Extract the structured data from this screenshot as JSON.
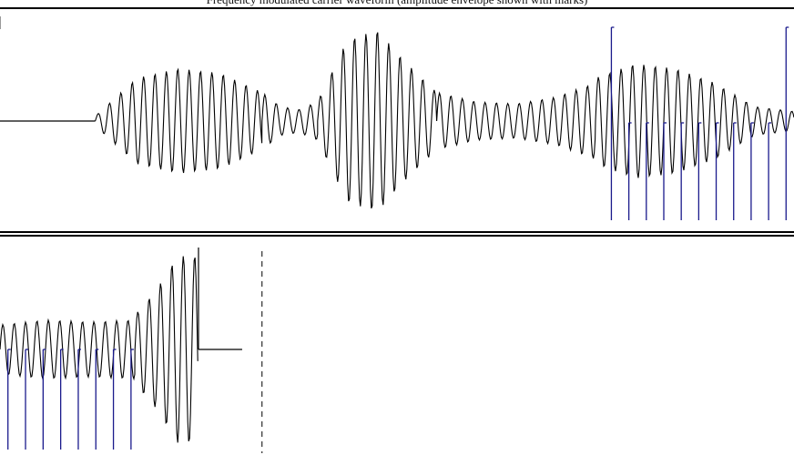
{
  "header": {
    "caption": "Frequency modulated carrier waveform (amplitude envelope shown with marks)"
  },
  "colors": {
    "background": "#ffffff",
    "waveform": "#000000",
    "marker": "#1a1a8c",
    "rule": "#000000"
  },
  "top_panel": {
    "flat_until": 0.12,
    "waveform_segments": [
      {
        "t0": 0.12,
        "t1": 0.33,
        "amp": [
          0.05,
          0.45,
          0.55,
          0.5,
          0.3
        ]
      },
      {
        "t0": 0.33,
        "t1": 0.4,
        "amp": [
          0.3,
          0.15,
          0.12,
          0.2
        ]
      },
      {
        "t0": 0.4,
        "t1": 0.55,
        "amp": [
          0.2,
          0.85,
          0.95,
          0.6,
          0.3
        ]
      },
      {
        "t0": 0.55,
        "t1": 0.75,
        "amp": [
          0.3,
          0.2,
          0.18,
          0.25,
          0.4
        ]
      },
      {
        "t0": 0.75,
        "t1": 1.0,
        "amp": [
          0.45,
          0.6,
          0.55,
          0.4,
          0.15,
          0.1
        ]
      }
    ],
    "marker_count": 11,
    "marker_start": 0.77,
    "marker_end": 0.99
  },
  "bottom_panel": {
    "waveform_segments": [
      {
        "t0": 0.0,
        "t1": 0.17,
        "amp": [
          0.25,
          0.3,
          0.28,
          0.3
        ]
      },
      {
        "t0": 0.17,
        "t1": 0.25,
        "amp": [
          0.35,
          0.6,
          0.95,
          0.95
        ]
      }
    ],
    "flat_from": 0.305,
    "dashed_cursor_at": 0.33,
    "marker_count": 8,
    "marker_start": 0.01,
    "marker_end": 0.165
  }
}
